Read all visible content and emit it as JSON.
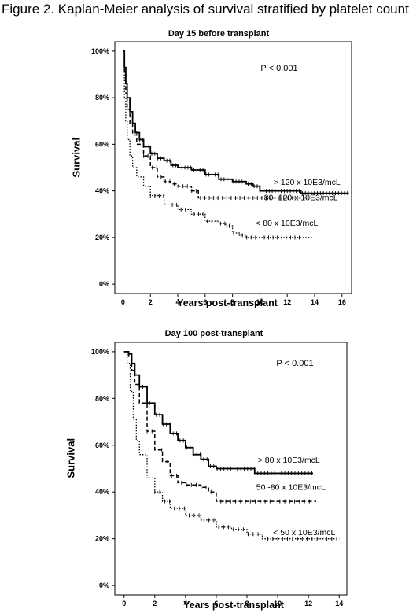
{
  "figure_title": "Figure 2. Kaplan-Meier analysis of survival stratified by platelet count",
  "chart_data": [
    {
      "type": "line",
      "title": "Day 15 before transplant",
      "xlabel": "Years post-transplant",
      "ylabel": "Survival",
      "annotation": "P < 0.001",
      "xlim": [
        -0.6,
        16.7
      ],
      "ylim": [
        -4,
        104
      ],
      "x_ticks": [
        0,
        2,
        4,
        6,
        8,
        10,
        12,
        14,
        16
      ],
      "y_ticks": [
        0,
        20,
        40,
        60,
        80,
        100
      ],
      "y_tick_labels": [
        "0%",
        "20%",
        "40%",
        "60%",
        "80%",
        "100%"
      ],
      "grid": false,
      "series": [
        {
          "name": "> 120 x 10E3/mcL",
          "style": "solid",
          "label_at": [
            11.0,
            42.5
          ],
          "points": [
            [
              0,
              100
            ],
            [
              0.1,
              93
            ],
            [
              0.2,
              86
            ],
            [
              0.3,
              80
            ],
            [
              0.5,
              74
            ],
            [
              0.7,
              69
            ],
            [
              0.9,
              65
            ],
            [
              1.2,
              62
            ],
            [
              1.5,
              59
            ],
            [
              2,
              56
            ],
            [
              2.5,
              54
            ],
            [
              3,
              53
            ],
            [
              3.5,
              51
            ],
            [
              4,
              50
            ],
            [
              5,
              49
            ],
            [
              6,
              47
            ],
            [
              7,
              45
            ],
            [
              8,
              44
            ],
            [
              9,
              43
            ],
            [
              9.5,
              42
            ],
            [
              10,
              40
            ],
            [
              11,
              40
            ],
            [
              12,
              40
            ],
            [
              13,
              39
            ],
            [
              14,
              39
            ],
            [
              15,
              39
            ],
            [
              16.5,
              39
            ]
          ],
          "censor_from": 1.0,
          "censor_to": 16.5
        },
        {
          "name": "80 -120 x 10E3/mcL",
          "style": "dashed",
          "label_at": [
            10.3,
            36.0
          ],
          "points": [
            [
              0,
              100
            ],
            [
              0.1,
              90
            ],
            [
              0.2,
              82
            ],
            [
              0.3,
              75
            ],
            [
              0.5,
              69
            ],
            [
              0.7,
              64
            ],
            [
              1,
              60
            ],
            [
              1.5,
              55
            ],
            [
              2,
              50
            ],
            [
              2.5,
              46
            ],
            [
              3,
              44
            ],
            [
              3.5,
              43
            ],
            [
              4,
              42
            ],
            [
              5,
              40
            ],
            [
              5.5,
              37
            ],
            [
              6,
              37
            ],
            [
              8,
              37
            ],
            [
              10,
              37
            ],
            [
              12,
              37
            ],
            [
              13.5,
              37
            ]
          ],
          "censor_from": 1.5,
          "censor_to": 13.0
        },
        {
          "name": "< 80 x 10E3/mcL",
          "style": "dotted",
          "label_at": [
            9.7,
            25.0
          ],
          "points": [
            [
              0,
              100
            ],
            [
              0.1,
              80
            ],
            [
              0.2,
              70
            ],
            [
              0.3,
              62
            ],
            [
              0.5,
              55
            ],
            [
              0.7,
              50
            ],
            [
              1,
              46
            ],
            [
              1.5,
              42
            ],
            [
              2,
              38
            ],
            [
              3,
              34
            ],
            [
              4,
              32
            ],
            [
              5,
              30
            ],
            [
              6,
              27
            ],
            [
              7,
              26
            ],
            [
              7.5,
              25
            ],
            [
              8,
              22
            ],
            [
              8.5,
              21
            ],
            [
              9,
              20
            ],
            [
              10,
              20
            ],
            [
              12,
              20
            ],
            [
              13.8,
              20
            ]
          ],
          "censor_from": 2.0,
          "censor_to": 13.0
        }
      ]
    },
    {
      "type": "line",
      "title": "Day 100 post-transplant",
      "xlabel": "Years post-transplant",
      "ylabel": "Survival",
      "annotation": "P < 0.001",
      "xlim": [
        -0.6,
        14.5
      ],
      "ylim": [
        -4,
        104
      ],
      "x_ticks": [
        0,
        2,
        4,
        6,
        8,
        10,
        12,
        14
      ],
      "y_ticks": [
        0,
        20,
        40,
        60,
        80,
        100
      ],
      "y_tick_labels": [
        "0%",
        "20%",
        "40%",
        "60%",
        "80%",
        "100%"
      ],
      "grid": false,
      "series": [
        {
          "name": "> 80 x 10E3/mcL",
          "style": "solid",
          "label_at": [
            8.7,
            52.5
          ],
          "points": [
            [
              0,
              100
            ],
            [
              0.3,
              99
            ],
            [
              0.5,
              95
            ],
            [
              0.7,
              90
            ],
            [
              1,
              85
            ],
            [
              1.5,
              78
            ],
            [
              2,
              73
            ],
            [
              2.5,
              69
            ],
            [
              3,
              65
            ],
            [
              3.5,
              62
            ],
            [
              4,
              59
            ],
            [
              4.5,
              56
            ],
            [
              5,
              54
            ],
            [
              5.5,
              51
            ],
            [
              6,
              50
            ],
            [
              7,
              50
            ],
            [
              8,
              50
            ],
            [
              8.5,
              48
            ],
            [
              9,
              48
            ],
            [
              10,
              48
            ],
            [
              11,
              48
            ],
            [
              12.3,
              48
            ]
          ],
          "censor_from": 1.0,
          "censor_to": 12.3
        },
        {
          "name": "50 -80 x 10E3/mcL",
          "style": "dashed",
          "label_at": [
            8.6,
            41.0
          ],
          "points": [
            [
              0,
              100
            ],
            [
              0.3,
              98
            ],
            [
              0.5,
              92
            ],
            [
              0.7,
              86
            ],
            [
              1,
              78
            ],
            [
              1.5,
              66
            ],
            [
              2,
              58
            ],
            [
              2.5,
              53
            ],
            [
              3,
              47
            ],
            [
              3.5,
              44
            ],
            [
              4,
              43
            ],
            [
              5,
              42
            ],
            [
              5.5,
              40
            ],
            [
              6,
              36
            ],
            [
              7,
              36
            ],
            [
              8,
              36
            ],
            [
              10,
              36
            ],
            [
              12,
              36
            ],
            [
              12.5,
              36
            ]
          ],
          "censor_from": 1.5,
          "censor_to": 12.2
        },
        {
          "name": "< 50 x 10E3/mcL",
          "style": "dotted",
          "label_at": [
            9.7,
            21.5
          ],
          "points": [
            [
              0,
              100
            ],
            [
              0.2,
              95
            ],
            [
              0.4,
              83
            ],
            [
              0.6,
              71
            ],
            [
              0.8,
              62
            ],
            [
              1,
              56
            ],
            [
              1.5,
              46
            ],
            [
              2,
              40
            ],
            [
              2.5,
              36
            ],
            [
              3,
              33
            ],
            [
              4,
              30
            ],
            [
              5,
              28
            ],
            [
              6,
              25
            ],
            [
              7,
              24
            ],
            [
              8,
              22
            ],
            [
              9,
              20
            ],
            [
              10,
              20
            ],
            [
              12,
              20
            ],
            [
              14,
              20
            ]
          ],
          "censor_from": 2.0,
          "censor_to": 14.0
        }
      ]
    }
  ]
}
